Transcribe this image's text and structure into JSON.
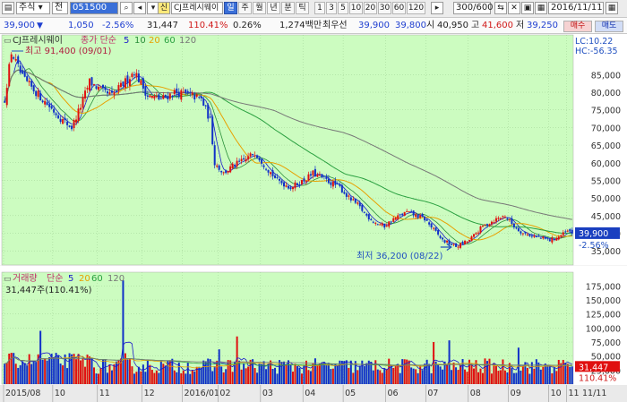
{
  "toolbar": {
    "market_select": "주식",
    "prev_select": "전",
    "code_input": "051500",
    "stock_name": "CJ프레시웨이",
    "daily_label": "일",
    "periods": [
      "주",
      "월",
      "년",
      "분",
      "틱"
    ],
    "minutes": [
      "1",
      "3",
      "5",
      "10",
      "20",
      "30",
      "60",
      "120"
    ],
    "count": "300/600",
    "date": "2016/11/11",
    "buy_label": "매수",
    "sell_label": "매도",
    "new_badge": "신"
  },
  "quote": {
    "price": "39,900",
    "change": "1,050",
    "change_pct": "-2.56%",
    "volume": "31,447",
    "vol_ratio": "110.41%",
    "turnover": "0.26%",
    "amount": "1,274백만",
    "bid_label": "최우선",
    "ask_price": "39,900",
    "bid_price": "39,800",
    "open_label": "시",
    "open": "40,950",
    "high_label": "고",
    "high": "41,600",
    "low_label": "저",
    "low": "39,250"
  },
  "chart_data": {
    "type": "candlestick",
    "price_panel": {
      "title": "CJ프레시웨이",
      "legend_label": "종가 단순",
      "ma_periods": [
        "5",
        "10",
        "20",
        "60",
        "120"
      ],
      "ma_colors": [
        "#1a1acc",
        "#2a8f3a",
        "#e8a000",
        "#2aa040",
        "#777777"
      ],
      "ylim": [
        32000,
        95500
      ],
      "ticks": [
        85000,
        80000,
        75000,
        70000,
        65000,
        60000,
        55000,
        50000,
        45000,
        40000,
        35000
      ],
      "tick_labels": [
        "85,000",
        "80,000",
        "75,000",
        "70,000",
        "65,000",
        "60,000",
        "55,000",
        "50,000",
        "45,000",
        "40,000",
        "35,000"
      ],
      "lc": "LC:10.22",
      "hc": "HC:-56.35",
      "max_annotation": "최고 91,400 (09/01)",
      "min_annotation": "최저 36,200 (08/22)",
      "last_price_label": "39,900",
      "last_change_label": "-2.56%",
      "keypoints": [
        [
          0,
          78
        ],
        [
          3,
          91.4
        ],
        [
          8,
          84
        ],
        [
          14,
          80
        ],
        [
          20,
          76
        ],
        [
          26,
          72
        ],
        [
          30,
          70
        ],
        [
          34,
          76
        ],
        [
          38,
          83
        ],
        [
          44,
          80
        ],
        [
          48,
          79
        ],
        [
          54,
          83
        ],
        [
          58,
          86
        ],
        [
          64,
          79
        ],
        [
          70,
          78
        ],
        [
          76,
          80
        ],
        [
          84,
          79
        ],
        [
          88,
          78
        ],
        [
          92,
          72
        ],
        [
          94,
          60
        ],
        [
          98,
          57
        ],
        [
          102,
          59
        ],
        [
          108,
          61
        ],
        [
          112,
          63
        ],
        [
          118,
          58
        ],
        [
          122,
          55
        ],
        [
          128,
          53
        ],
        [
          134,
          55
        ],
        [
          138,
          57
        ],
        [
          144,
          55
        ],
        [
          150,
          53
        ],
        [
          154,
          50
        ],
        [
          158,
          48
        ],
        [
          162,
          45
        ],
        [
          166,
          43
        ],
        [
          170,
          42
        ],
        [
          174,
          44
        ],
        [
          180,
          46
        ],
        [
          188,
          44
        ],
        [
          192,
          41
        ],
        [
          196,
          38
        ],
        [
          202,
          36.2
        ],
        [
          208,
          38
        ],
        [
          214,
          42
        ],
        [
          220,
          44
        ],
        [
          224,
          45
        ],
        [
          228,
          42
        ],
        [
          232,
          40
        ],
        [
          238,
          39
        ],
        [
          244,
          38
        ],
        [
          248,
          39
        ],
        [
          252,
          40.5
        ],
        [
          254,
          39.9
        ]
      ]
    },
    "volume_panel": {
      "title": "거래량",
      "legend_label": "단순",
      "ma_periods": [
        "5",
        "20",
        "60",
        "120"
      ],
      "ma_colors": [
        "#1a1acc",
        "#e8a000",
        "#2aa040",
        "#777777"
      ],
      "current_label": "31,447주(110.41%)",
      "ylim": [
        0,
        190000
      ],
      "ticks": [
        175000,
        150000,
        125000,
        100000,
        75000,
        50000,
        25000
      ],
      "tick_labels": [
        "175,000",
        "150,000",
        "125,000",
        "100,000",
        "75,000",
        "50,000",
        "25,000"
      ],
      "last_volume_label": "31,447",
      "last_ratio_label": "110.41%",
      "spikes": [
        [
          53,
          185000
        ],
        [
          16,
          95000
        ],
        [
          104,
          85000
        ],
        [
          199,
          78000
        ],
        [
          192,
          75000
        ],
        [
          230,
          65000
        ],
        [
          96,
          62000
        ],
        [
          54,
          55000
        ]
      ]
    },
    "x_axis": {
      "labels": [
        "2015/08",
        "10",
        "11",
        "12",
        "2016/01",
        "02",
        "03",
        "04",
        "05",
        "06",
        "07",
        "08",
        "09",
        "10",
        "11"
      ],
      "positions": [
        0,
        22,
        42,
        62,
        80,
        96,
        115,
        134,
        152,
        171,
        189,
        208,
        226,
        244,
        252
      ],
      "right_label": "11/11",
      "n_bars": 255
    }
  }
}
